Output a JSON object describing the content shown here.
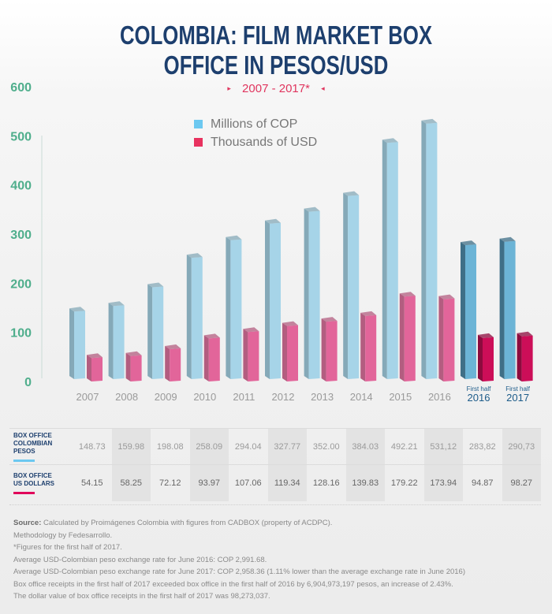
{
  "title_line1": "COLOMBIA: FILM MARKET BOX",
  "title_line2": "OFFICE IN PESOS/USD",
  "subtitle": "2007 - 2017*",
  "subtitle_marker_left": "▸",
  "subtitle_marker_right": "◂",
  "colors": {
    "title": "#1d3f6e",
    "accent": "#e0355e",
    "axis_ticks": "#4fae8c",
    "cop": "#a6d4e8",
    "cop_side": "#85a9b8",
    "usd": "#e2659a",
    "usd_side": "#b35d80",
    "cop_half": "#6cb4d6",
    "cop_half_side": "#3f6f87",
    "usd_half": "#cc0e58",
    "usd_half_side": "#8c0b3e",
    "legend_cop": "#6cc8f0",
    "legend_usd": "#e8325f"
  },
  "chart_data": {
    "type": "bar",
    "title": "COLOMBIA: FILM MARKET BOX OFFICE IN PESOS/USD",
    "subtitle": "2007 - 2017*",
    "categories": [
      "2007",
      "2008",
      "2009",
      "2010",
      "2011",
      "2012",
      "2013",
      "2014",
      "2015",
      "2016",
      "First half 2016",
      "First half 2017"
    ],
    "category_labels": [
      {
        "main": "2007",
        "sub": ""
      },
      {
        "main": "2008",
        "sub": ""
      },
      {
        "main": "2009",
        "sub": ""
      },
      {
        "main": "2010",
        "sub": ""
      },
      {
        "main": "2011",
        "sub": ""
      },
      {
        "main": "2012",
        "sub": ""
      },
      {
        "main": "2013",
        "sub": ""
      },
      {
        "main": "2014",
        "sub": ""
      },
      {
        "main": "2015",
        "sub": ""
      },
      {
        "main": "2016",
        "sub": ""
      },
      {
        "main": "2016",
        "sub": "First half"
      },
      {
        "main": "2017",
        "sub": "First half"
      }
    ],
    "series": [
      {
        "name": "Millions of COP",
        "values": [
          148.73,
          159.98,
          198.08,
          258.09,
          294.04,
          327.77,
          352.0,
          384.03,
          492.21,
          531.12,
          283.82,
          290.73
        ]
      },
      {
        "name": "Thousands of USD",
        "values": [
          54.15,
          58.25,
          72.12,
          93.97,
          107.06,
          119.34,
          128.16,
          139.83,
          179.22,
          173.94,
          94.87,
          98.27
        ]
      }
    ],
    "yticks": [
      0,
      100,
      200,
      300,
      400,
      500,
      600
    ],
    "ylim": [
      0,
      600
    ],
    "xlabel": "",
    "ylabel": "",
    "grid": false,
    "legend_position": "top-center"
  },
  "legend": [
    {
      "label": "Millions of COP"
    },
    {
      "label": "Thousands of USD"
    }
  ],
  "table": {
    "rows": [
      {
        "label_line1": "BOX OFFICE",
        "label_line2": "COLOMBIAN PESOS",
        "values": [
          "148.73",
          "159.98",
          "198.08",
          "258.09",
          "294.04",
          "327.77",
          "352.00",
          "384.03",
          "492.21",
          "531,12",
          "283,82",
          "290,73"
        ]
      },
      {
        "label_line1": "BOX OFFICE",
        "label_line2": "US DOLLARS",
        "values": [
          "54.15",
          "58.25",
          "72.12",
          "93.97",
          "107.06",
          "119.34",
          "128.16",
          "139.83",
          "179.22",
          "173.94",
          "94.87",
          "98.27"
        ]
      }
    ]
  },
  "footer": {
    "source_label": "Source:",
    "source_text": " Calculated by Proimágenes Colombia with figures from CADBOX (property of ACDPC).",
    "lines": [
      "Methodology by Fedesarrollo.",
      "*Figures for the first half of 2017.",
      "Average USD-Colombian peso exchange rate for June 2016: COP 2,991.68.",
      "Average USD-Colombian peso exchange rate for June 2017: COP 2,958.36 (1.11% lower than the average exchange rate in June 2016)",
      "Box office receipts in the first half of 2017 exceeded box office in the first half of 2016 by 6,904,973,197 pesos, an increase of 2.43%.",
      "The dollar value of box office receipts in the first half of 2017 was 98,273,037."
    ]
  }
}
